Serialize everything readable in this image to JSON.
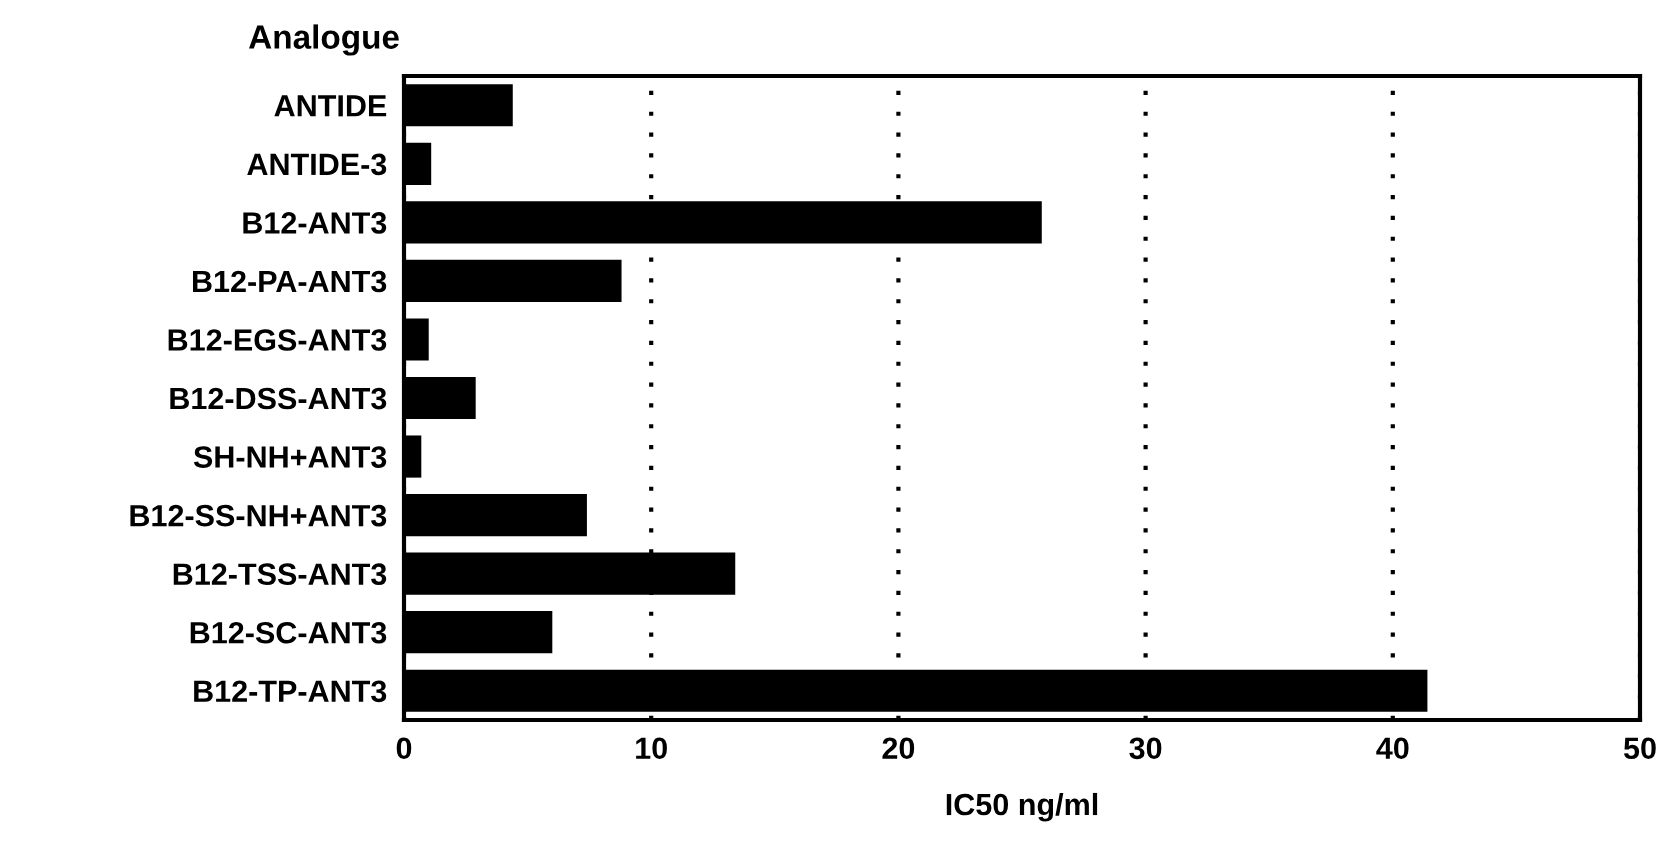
{
  "chart_data": {
    "type": "bar",
    "orientation": "horizontal",
    "ylabel": "Analogue",
    "xlabel": "IC50 ng/ml",
    "categories": [
      "ANTIDE",
      "ANTIDE-3",
      "B12-ANT3",
      "B12-PA-ANT3",
      "B12-EGS-ANT3",
      "B12-DSS-ANT3",
      "SH-NH+ANT3",
      "B12-SS-NH+ANT3",
      "B12-TSS-ANT3",
      "B12-SC-ANT3",
      "B12-TP-ANT3"
    ],
    "values": [
      4.4,
      1.1,
      25.8,
      8.8,
      1.0,
      2.9,
      0.7,
      7.4,
      13.4,
      6.0,
      41.4
    ],
    "color": "#000000",
    "xlim": [
      0,
      50
    ],
    "xticks": [
      0,
      10,
      20,
      30,
      40,
      50
    ],
    "grid": "x"
  }
}
